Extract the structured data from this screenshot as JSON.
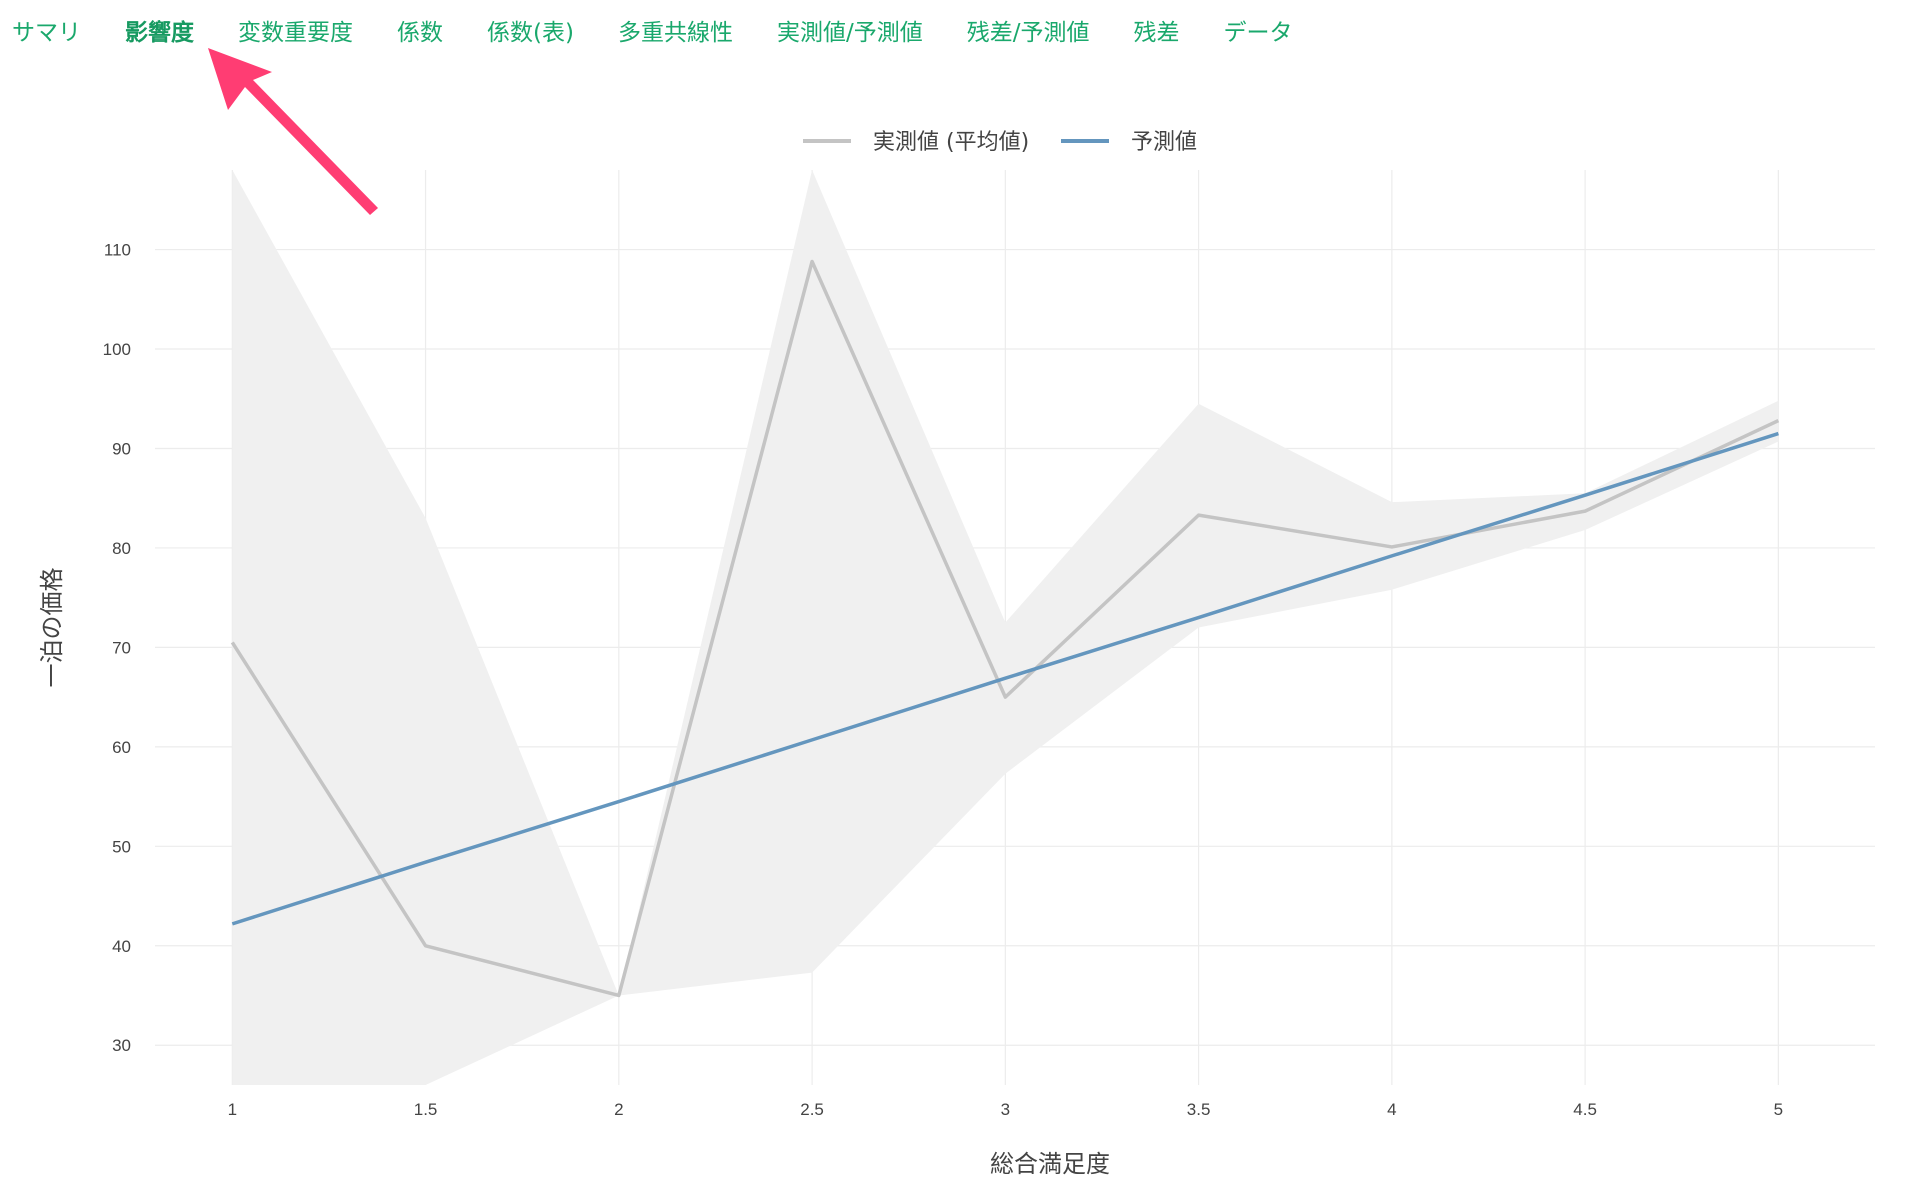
{
  "tabs": [
    {
      "label": "サマリ",
      "active": false
    },
    {
      "label": "影響度",
      "active": true
    },
    {
      "label": "変数重要度",
      "active": false
    },
    {
      "label": "係数",
      "active": false
    },
    {
      "label": "係数(表)",
      "active": false
    },
    {
      "label": "多重共線性",
      "active": false
    },
    {
      "label": "実測値/予測値",
      "active": false
    },
    {
      "label": "残差/予測値",
      "active": false
    },
    {
      "label": "残差",
      "active": false
    },
    {
      "label": "データ",
      "active": false
    }
  ],
  "colors": {
    "tab": "#1aa86c",
    "actual": "#c4c4c4",
    "predicted": "#6496be",
    "band": "#f0f0f0",
    "arrow": "#ff3d73"
  },
  "chart_data": {
    "type": "line",
    "xlabel": "総合満足度",
    "ylabel": "一泊の価格",
    "x": [
      1,
      1.5,
      2,
      2.5,
      3,
      3.5,
      4,
      4.5,
      5
    ],
    "xlim": [
      0.8,
      5.25
    ],
    "ylim": [
      26,
      118
    ],
    "yticks": [
      30,
      40,
      50,
      60,
      70,
      80,
      90,
      100,
      110
    ],
    "grid": true,
    "legend_position": "top-center",
    "series": [
      {
        "name": "実測値 (平均値)",
        "values": [
          70.5,
          40,
          35,
          108.8,
          65,
          83.3,
          80.1,
          83.7,
          92.8
        ],
        "band_upper": [
          118,
          83,
          35,
          118,
          72.5,
          94.5,
          84.6,
          85.5,
          94.8
        ],
        "band_lower": [
          26,
          26,
          35,
          37.3,
          57.3,
          72,
          75.8,
          81.8,
          90.7
        ]
      },
      {
        "name": "予測値",
        "values": [
          42.2,
          48.4,
          54.5,
          60.7,
          66.9,
          73.0,
          79.2,
          85.3,
          91.5
        ]
      }
    ]
  }
}
